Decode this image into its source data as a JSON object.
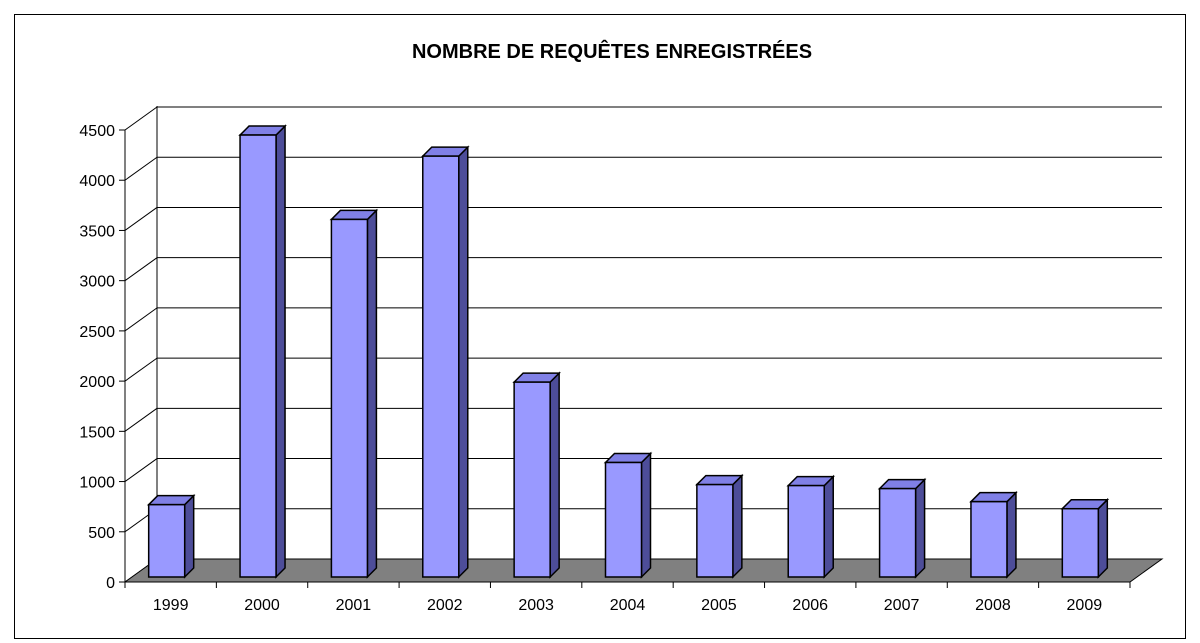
{
  "chart_data": {
    "type": "bar",
    "title": "NOMBRE DE REQUÊTES ENREGISTRÉES",
    "xlabel": "",
    "ylabel": "",
    "categories": [
      "1999",
      "2000",
      "2001",
      "2002",
      "2003",
      "2004",
      "2005",
      "2006",
      "2007",
      "2008",
      "2009"
    ],
    "values": [
      720,
      4400,
      3560,
      4190,
      1940,
      1140,
      920,
      910,
      880,
      750,
      680
    ],
    "ylim": [
      0,
      4500
    ],
    "yticks": [
      "0",
      "500",
      "1000",
      "1500",
      "2000",
      "2500",
      "3000",
      "3500",
      "4000",
      "4500"
    ],
    "grid": true,
    "legend": "none",
    "colors": {
      "bar_front": "#9999ff",
      "bar_top": "#8080e6",
      "bar_side": "#4d4d99",
      "floor": "#808080",
      "gridline": "#000000"
    }
  }
}
